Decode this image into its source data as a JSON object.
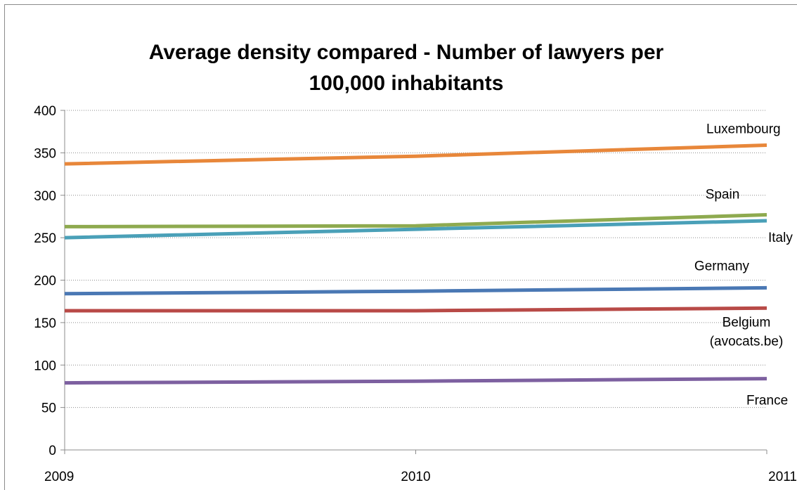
{
  "chart_data": {
    "type": "line",
    "title_lines": [
      "Average density compared - Number of lawyers per",
      "100,000 inhabitants"
    ],
    "xlabel": "",
    "ylabel": "",
    "x": [
      "2009",
      "2010",
      "2011"
    ],
    "ylim": [
      0,
      400
    ],
    "yticks": [
      "0",
      "50",
      "100",
      "150",
      "200",
      "250",
      "300",
      "350",
      "400"
    ],
    "grid": "horizontal dotted",
    "legend": "none (direct labels at right)",
    "series": [
      {
        "name": "Luxembourg",
        "label_lines": [
          "Luxembourg"
        ],
        "color": "#E8873A",
        "values": [
          337,
          346,
          359
        ]
      },
      {
        "name": "Spain",
        "label_lines": [
          "Spain"
        ],
        "color": "#8EAA4F",
        "values": [
          263,
          264,
          277
        ]
      },
      {
        "name": "Italy",
        "label_lines": [
          "Italy"
        ],
        "color": "#4AA0B8",
        "values": [
          250,
          260,
          270
        ]
      },
      {
        "name": "Germany",
        "label_lines": [
          "Germany"
        ],
        "color": "#4A78B4",
        "values": [
          184,
          187,
          191
        ]
      },
      {
        "name": "Belgium (avocats.be)",
        "label_lines": [
          "Belgium",
          "(avocats.be)"
        ],
        "color": "#B84A47",
        "values": [
          164,
          164,
          167
        ]
      },
      {
        "name": "France",
        "label_lines": [
          "France"
        ],
        "color": "#7D60A0",
        "values": [
          79,
          81,
          84
        ]
      }
    ]
  }
}
